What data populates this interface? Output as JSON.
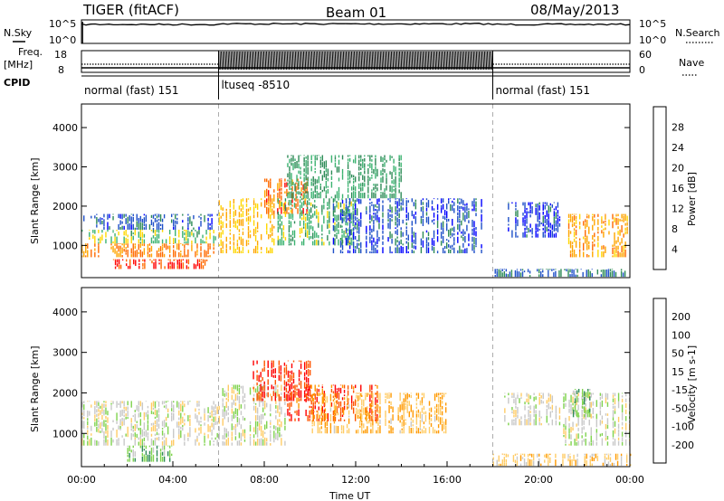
{
  "header": {
    "station": "TIGER (fitACF)",
    "beam": "Beam 01",
    "date": "08/May/2013"
  },
  "top_panels": {
    "nsky_label": "N.Sky",
    "nsearch_label": "N.Search",
    "noise_ticks": [
      "10^5",
      "10^0"
    ],
    "freq_label_1": "Freq.",
    "freq_label_2": "[MHz]",
    "freq_ticks": [
      "18",
      "8"
    ],
    "nave_label": "Nave",
    "nave_ticks": [
      "60",
      "0"
    ],
    "cpid_label": "CPID",
    "cpid_segments": [
      {
        "name": "normal (fast) 151",
        "start_h": 0,
        "end_h": 6
      },
      {
        "name": "ltuseq -8510",
        "start_h": 6,
        "end_h": 18
      },
      {
        "name": "normal (fast) 151",
        "start_h": 18,
        "end_h": 24
      }
    ]
  },
  "colors": {
    "power": [
      "#0000ff",
      "#1e4fc8",
      "#2e8b57",
      "#3cb371",
      "#ffd700",
      "#ffa500",
      "#ff6a00",
      "#ff0000"
    ],
    "velocity": [
      "#1a3fbf",
      "#2e6b8f",
      "#2e8b57",
      "#7fd34e",
      "#c8c8c8",
      "#ffcc66",
      "#ff9900",
      "#ff5500",
      "#ff0000"
    ]
  },
  "chart_data": [
    {
      "type": "heatmap",
      "title": "Power",
      "xlabel": "",
      "ylabel": "Slant Range [km]",
      "xlim": [
        0,
        24
      ],
      "ylim": [
        180,
        4600
      ],
      "y_ticks": [
        1000,
        2000,
        3000,
        4000
      ],
      "colorbar_label": "Power [dB]",
      "colorbar_ticks": [
        "4",
        "8",
        "12",
        "16",
        "20",
        "24",
        "28"
      ],
      "colorbar_range": [
        0,
        32
      ],
      "regions": [
        {
          "t": [
            0,
            6
          ],
          "r": [
            700,
            1050
          ],
          "value": 24
        },
        {
          "t": [
            0,
            6
          ],
          "r": [
            1050,
            1400
          ],
          "value": 15
        },
        {
          "t": [
            0,
            6
          ],
          "r": [
            1400,
            1800
          ],
          "value": 6
        },
        {
          "t": [
            1.3,
            5.5
          ],
          "r": [
            400,
            650
          ],
          "value": 28
        },
        {
          "t": [
            6,
            8.5
          ],
          "r": [
            800,
            2200
          ],
          "value": 20
        },
        {
          "t": [
            8,
            10
          ],
          "r": [
            1800,
            2700
          ],
          "value": 26
        },
        {
          "t": [
            8.5,
            12
          ],
          "r": [
            1000,
            2200
          ],
          "value": 14
        },
        {
          "t": [
            9,
            14
          ],
          "r": [
            2200,
            3300
          ],
          "value": 12
        },
        {
          "t": [
            11,
            17.5
          ],
          "r": [
            800,
            2200
          ],
          "value": 6
        },
        {
          "t": [
            18.5,
            21
          ],
          "r": [
            1200,
            2100
          ],
          "value": 5
        },
        {
          "t": [
            21.3,
            24
          ],
          "r": [
            700,
            1800
          ],
          "value": 22
        },
        {
          "t": [
            18,
            24
          ],
          "r": [
            200,
            400
          ],
          "value": 8
        }
      ]
    },
    {
      "type": "heatmap",
      "title": "Velocity",
      "xlabel": "Time UT",
      "ylabel": "Slant Range [km]",
      "xlim": [
        0,
        24
      ],
      "ylim": [
        180,
        4600
      ],
      "x_ticks": [
        "00:00",
        "04:00",
        "08:00",
        "12:00",
        "16:00",
        "20:00",
        "00:00"
      ],
      "y_ticks": [
        1000,
        2000,
        3000,
        4000
      ],
      "colorbar_label": "Velocity [m s-1]",
      "colorbar_ticks": [
        "200",
        "100",
        "50",
        "15",
        "-15",
        "-50",
        "-100",
        "-200"
      ],
      "colorbar_range": [
        -250,
        250
      ],
      "regions": [
        {
          "t": [
            0,
            6
          ],
          "r": [
            700,
            1800
          ],
          "value": 0
        },
        {
          "t": [
            2,
            4
          ],
          "r": [
            300,
            700
          ],
          "value": 60
        },
        {
          "t": [
            6,
            9
          ],
          "r": [
            700,
            2200
          ],
          "value": 0
        },
        {
          "t": [
            7.5,
            10
          ],
          "r": [
            1800,
            2800
          ],
          "value": -200
        },
        {
          "t": [
            9,
            13
          ],
          "r": [
            1300,
            2200
          ],
          "value": -180
        },
        {
          "t": [
            10,
            16
          ],
          "r": [
            1000,
            2000
          ],
          "value": -80
        },
        {
          "t": [
            18.5,
            21
          ],
          "r": [
            1200,
            2000
          ],
          "value": 0
        },
        {
          "t": [
            21,
            24
          ],
          "r": [
            700,
            2000
          ],
          "value": 0
        },
        {
          "t": [
            21.5,
            22.3
          ],
          "r": [
            1400,
            2100
          ],
          "value": 60
        },
        {
          "t": [
            18,
            24
          ],
          "r": [
            200,
            500
          ],
          "value": -60
        }
      ]
    }
  ]
}
